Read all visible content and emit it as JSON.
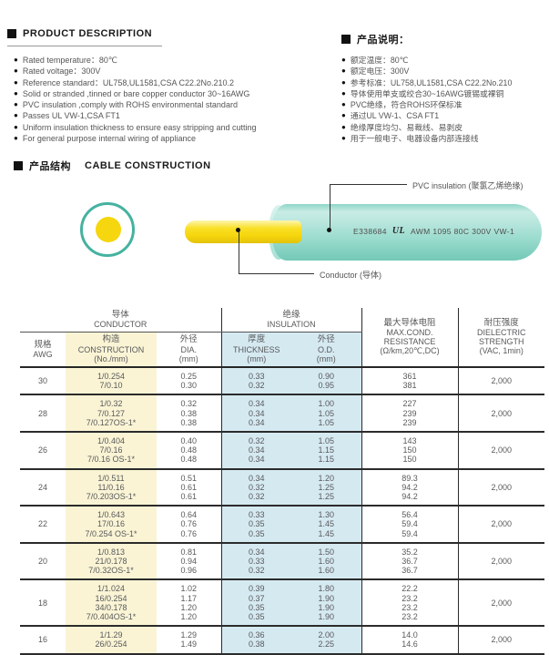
{
  "desc_en": {
    "title": "PRODUCT  DESCRIPTION",
    "items": [
      "Rated  temperature：80℃",
      "Rated  voltage：300V",
      "Reference  standard：UL758,UL1581,CSA  C22.2No.210.2",
      "Solid  or  stranded ,tinned  or  bare  copper  conductor  30~16AWG",
      "PVC  insulation ,comply  with  ROHS  environmental  standard",
      "Passes  UL  VW-1,CSA  FT1",
      "Uniform  insulation  thickness  to  ensure  easy  stripping  and  cutting",
      "For  general  purpose  internal  wiring  of  appliance"
    ]
  },
  "desc_cn": {
    "title": "产品说明：",
    "items": [
      "额定温度：80℃",
      "额定电压：300V",
      "参考标准：UL758,UL1581,CSA C22.2No.210",
      "导体使用单支或绞合30~16AWG镀锡或裸铜",
      "PVC绝缘，符合ROHS环保标准",
      "通过UL VW-1、CSA FT1",
      "绝缘厚度均匀、易裁线、易剥皮",
      "用于一般电子、电器设备内部连接线"
    ]
  },
  "construction": {
    "title_cn": "产品结构",
    "title_en": "CABLE  CONSTRUCTION",
    "label_insulation": "PVC insulation (聚氯乙烯绝缘)",
    "label_conductor": "Conductor (导体)",
    "print_code": "E338684",
    "print_ul": "UL",
    "print_spec": "AWM 1095 80C 300V VW-1"
  },
  "table": {
    "groups": {
      "conductor_cn": "导体",
      "conductor_en": "CONDUCTOR",
      "insulation_cn": "绝缘",
      "insulation_en": "INSULATION"
    },
    "headers": {
      "awg": [
        "规格",
        "AWG"
      ],
      "construction": [
        "构造",
        "CONSTRUCTION",
        "(No./mm)"
      ],
      "dia": [
        "外径",
        "DIA.",
        "(mm)"
      ],
      "thickness": [
        "厚度",
        "THICKNESS",
        "(mm)"
      ],
      "od": [
        "外径",
        "O.D.",
        "(mm)"
      ],
      "resistance": [
        "最大导体电阻",
        "MAX.COND.",
        "RESISTANCE",
        "(Ω/km,20℃,DC)"
      ],
      "dielectric": [
        "耐压强度",
        "DIELECTRIC",
        "STRENGTH",
        "(VAC, 1min)"
      ]
    },
    "rows": [
      {
        "awg": "30",
        "construction": [
          "1/0.254",
          "7/0.10"
        ],
        "dia": [
          "0.25",
          "0.30"
        ],
        "thickness": [
          "0.33",
          "0.32"
        ],
        "od": [
          "0.90",
          "0.95"
        ],
        "resistance": [
          "361",
          "381"
        ],
        "dielectric": "2,000"
      },
      {
        "awg": "28",
        "construction": [
          "1/0.32",
          "7/0.127",
          "7/0.127OS-1*"
        ],
        "dia": [
          "0.32",
          "0.38",
          "0.38"
        ],
        "thickness": [
          "0.34",
          "0.34",
          "0.34"
        ],
        "od": [
          "1.00",
          "1.05",
          "1.05"
        ],
        "resistance": [
          "227",
          "239",
          "239"
        ],
        "dielectric": "2,000"
      },
      {
        "awg": "26",
        "construction": [
          "1/0.404",
          "7/0.16",
          "7/0.16 OS-1*"
        ],
        "dia": [
          "0.40",
          "0.48",
          "0.48"
        ],
        "thickness": [
          "0.32",
          "0.34",
          "0.34"
        ],
        "od": [
          "1.05",
          "1.15",
          "1.15"
        ],
        "resistance": [
          "143",
          "150",
          "150"
        ],
        "dielectric": "2,000"
      },
      {
        "awg": "24",
        "construction": [
          "1/0.511",
          "11/0.16",
          "7/0.203OS-1*"
        ],
        "dia": [
          "0.51",
          "0.61",
          "0.61"
        ],
        "thickness": [
          "0.34",
          "0.32",
          "0.32"
        ],
        "od": [
          "1.20",
          "1.25",
          "1.25"
        ],
        "resistance": [
          "89.3",
          "94.2",
          "94.2"
        ],
        "dielectric": "2,000"
      },
      {
        "awg": "22",
        "construction": [
          "1/0.643",
          "17/0.16",
          "7/0.254 OS-1*"
        ],
        "dia": [
          "0.64",
          "0.76",
          "0.76"
        ],
        "thickness": [
          "0.33",
          "0.35",
          "0.35"
        ],
        "od": [
          "1.30",
          "1.45",
          "1.45"
        ],
        "resistance": [
          "56.4",
          "59.4",
          "59.4"
        ],
        "dielectric": "2,000"
      },
      {
        "awg": "20",
        "construction": [
          "1/0.813",
          "21/0.178",
          "7/0.32OS-1*"
        ],
        "dia": [
          "0.81",
          "0.94",
          "0.96"
        ],
        "thickness": [
          "0.34",
          "0.33",
          "0.32"
        ],
        "od": [
          "1.50",
          "1.60",
          "1.60"
        ],
        "resistance": [
          "35.2",
          "36.7",
          "36.7"
        ],
        "dielectric": "2,000"
      },
      {
        "awg": "18",
        "construction": [
          "1/1.024",
          "16/0.254",
          "34/0.178",
          "7/0.404OS-1*"
        ],
        "dia": [
          "1.02",
          "1.17",
          "1.20",
          "1.20"
        ],
        "thickness": [
          "0.39",
          "0.37",
          "0.35",
          "0.35"
        ],
        "od": [
          "1.80",
          "1.90",
          "1.90",
          "1.90"
        ],
        "resistance": [
          "22.2",
          "23.2",
          "23.2",
          "23.2"
        ],
        "dielectric": "2,000"
      },
      {
        "awg": "16",
        "construction": [
          "1/1.29",
          "26/0.254"
        ],
        "dia": [
          "1.29",
          "1.49"
        ],
        "thickness": [
          "0.36",
          "0.38"
        ],
        "od": [
          "2.00",
          "2.25"
        ],
        "resistance": [
          "14.0",
          "14.6"
        ],
        "dielectric": "2,000"
      }
    ]
  },
  "colors": {
    "insulation_teal": "#45b2a0",
    "conductor_yellow": "#f6d60e",
    "construction_col_bg": "#faf4d5",
    "insulation_col_bg": "#d5e9f1",
    "table_line": "#2b2b2b"
  }
}
